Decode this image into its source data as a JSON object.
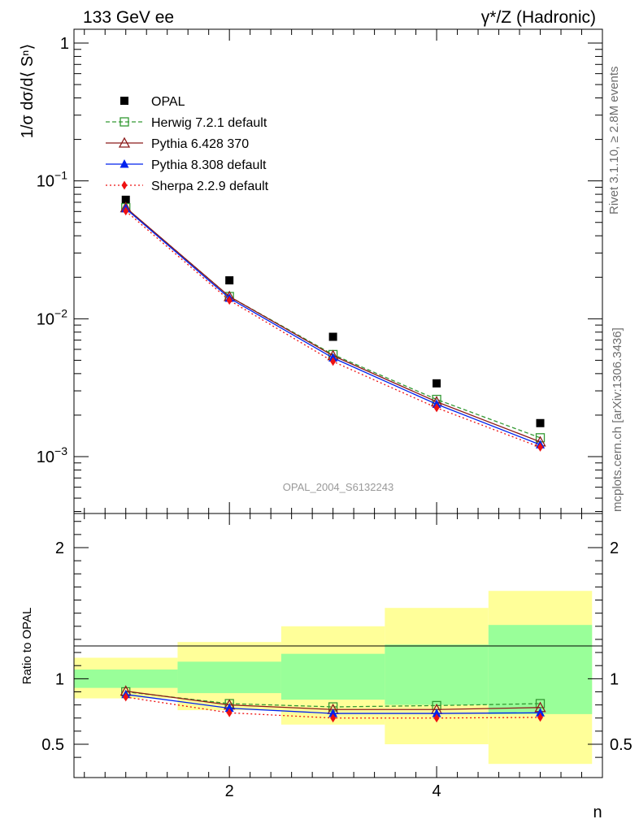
{
  "header": {
    "left": "133 GeV ee",
    "right": "γ*/Z (Hadronic)"
  },
  "side_text": {
    "rivet": "Rivet 3.1.10, ≥ 2.8M events",
    "mcplots": "mcplots.cern.ch [arXiv:1306.3436]"
  },
  "analysis_label": "OPAL_2004_S6132243",
  "colors": {
    "opal": "#000000",
    "herwig": "#339933",
    "pythia6": "#8b1a1a",
    "pythia8": "#0022ee",
    "sherpa": "#ee1111",
    "band_inner": "#99ff99",
    "band_outer": "#ffff99"
  },
  "chart_data": [
    {
      "type": "scatter",
      "panel": "main",
      "ylabel": "1/σ dσ/d⟨ Sⁿ⟩",
      "yscale": "log",
      "ylim": [
        0.00042,
        1.3
      ],
      "xlim": [
        0.5,
        5.6
      ],
      "ytick_labels": [
        "1",
        "10⁻¹",
        "10⁻²",
        "10⁻³"
      ],
      "ytick_values": [
        1,
        0.1,
        0.01,
        0.001
      ],
      "x": [
        1,
        2,
        3,
        4,
        5
      ],
      "series": [
        {
          "name": "OPAL",
          "key": "opal",
          "values": [
            0.073,
            0.019,
            0.0074,
            0.0034,
            0.00175
          ],
          "style": "data-square"
        },
        {
          "name": "Herwig 7.2.1 default",
          "key": "herwig",
          "values": [
            0.064,
            0.0145,
            0.0055,
            0.0026,
            0.00137
          ],
          "style": "open-square",
          "dash": "5,3"
        },
        {
          "name": "Pythia 6.428 370",
          "key": "pythia6",
          "values": [
            0.064,
            0.0145,
            0.0054,
            0.0025,
            0.00128
          ],
          "style": "open-triangle",
          "dash": ""
        },
        {
          "name": "Pythia 8.308 default",
          "key": "pythia8",
          "values": [
            0.063,
            0.0141,
            0.0052,
            0.0024,
            0.00122
          ],
          "style": "filled-triangle",
          "dash": ""
        },
        {
          "name": "Sherpa 2.2.9 default",
          "key": "sherpa",
          "values": [
            0.0605,
            0.0136,
            0.0049,
            0.00226,
            0.00117
          ],
          "style": "filled-diamond",
          "dash": "2,3"
        }
      ],
      "legend": "top-left"
    },
    {
      "type": "line",
      "panel": "ratio",
      "ylabel": "Ratio to OPAL",
      "xlabel": "n",
      "ylim": [
        0.35,
        2.35
      ],
      "xlim": [
        0.5,
        5.6
      ],
      "ytick_labels": [
        "0.5",
        "1",
        "2"
      ],
      "ytick_values": [
        0.5,
        1,
        2
      ],
      "xtick_labels": [
        "2",
        "4"
      ],
      "xtick_values": [
        2,
        4
      ],
      "x": [
        1,
        2,
        3,
        4,
        5
      ],
      "bins": [
        [
          0.5,
          1.5
        ],
        [
          1.5,
          2.5
        ],
        [
          2.5,
          3.5
        ],
        [
          3.5,
          4.5
        ],
        [
          4.5,
          5.5
        ]
      ],
      "band_inner": [
        [
          0.93,
          1.07
        ],
        [
          0.89,
          1.13
        ],
        [
          0.84,
          1.19
        ],
        [
          0.8,
          1.26
        ],
        [
          0.73,
          1.41
        ]
      ],
      "band_outer": [
        [
          0.85,
          1.16
        ],
        [
          0.76,
          1.28
        ],
        [
          0.65,
          1.4
        ],
        [
          0.5,
          1.54
        ],
        [
          0.35,
          1.67
        ]
      ],
      "series": [
        {
          "name": "Herwig 7.2.1 default",
          "key": "herwig",
          "values": [
            0.9,
            0.81,
            0.785,
            0.795,
            0.81
          ],
          "style": "open-square",
          "dash": "5,3"
        },
        {
          "name": "Pythia 6.428 370",
          "key": "pythia6",
          "values": [
            0.905,
            0.8,
            0.765,
            0.765,
            0.78
          ],
          "style": "open-triangle",
          "dash": ""
        },
        {
          "name": "Pythia 8.308 default",
          "key": "pythia8",
          "values": [
            0.88,
            0.775,
            0.735,
            0.735,
            0.74
          ],
          "style": "filled-triangle",
          "dash": ""
        },
        {
          "name": "Sherpa 2.2.9 default",
          "key": "sherpa",
          "values": [
            0.86,
            0.74,
            0.7,
            0.7,
            0.705
          ],
          "style": "filled-diamond",
          "dash": "2,3"
        }
      ]
    }
  ]
}
